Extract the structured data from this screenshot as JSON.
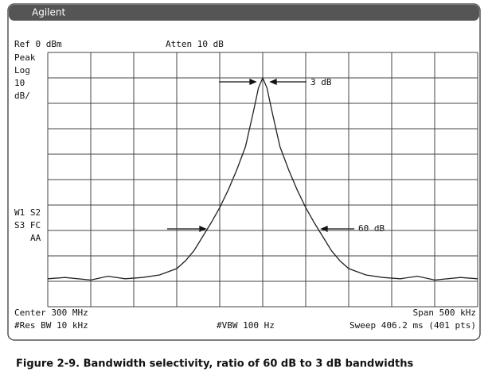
{
  "header": {
    "brand": "Agilent"
  },
  "screen": {
    "ref": "Ref 0 dBm",
    "atten": "Atten 10 dB",
    "mode": [
      "Peak",
      "Log",
      "10",
      "dB/"
    ],
    "flags": [
      "W1 S2",
      "S3 FC",
      "AA"
    ],
    "center": "Center 300 MHz",
    "span": "Span 500 kHz",
    "rbw": "#Res BW 10 kHz",
    "vbw": "#VBW 100 Hz",
    "sweep": "Sweep 406.2 ms (401 pts)"
  },
  "caption": "Figure 2-9. Bandwidth selectivity, ratio of 60 dB to 3 dB bandwidths",
  "chart_data": {
    "type": "line",
    "color": "#222222",
    "grid": true,
    "x": [
      299.75,
      299.77,
      299.8,
      299.82,
      299.84,
      299.86,
      299.88,
      299.9,
      299.91,
      299.92,
      299.93,
      299.94,
      299.95,
      299.96,
      299.97,
      299.98,
      299.99,
      299.995,
      300,
      300.005,
      300.01,
      300.02,
      300.03,
      300.04,
      300.05,
      300.06,
      300.07,
      300.08,
      300.09,
      300.1,
      300.12,
      300.14,
      300.16,
      300.18,
      300.2,
      300.23,
      300.25
    ],
    "values": [
      -89,
      -88.5,
      -89.5,
      -88,
      -89,
      -88.5,
      -87.5,
      -85,
      -82,
      -78,
      -72.5,
      -67,
      -61,
      -54,
      -46,
      -37,
      -22,
      -14,
      -10,
      -14,
      -22,
      -37,
      -46,
      -54,
      -61,
      -67,
      -72.5,
      -78,
      -82,
      -85,
      -87.5,
      -88.5,
      -89,
      -88,
      -89.5,
      -88.5,
      -89
    ],
    "xlim": [
      299.75,
      300.25
    ],
    "ylim": [
      -100,
      0
    ],
    "xticks": [
      299.75,
      299.8,
      299.85,
      299.9,
      299.95,
      300,
      300.05,
      300.1,
      300.15,
      300.2,
      300.25
    ],
    "yticks": [
      0,
      -10,
      -20,
      -30,
      -40,
      -50,
      -60,
      -70,
      -80,
      -90,
      -100
    ],
    "annotations": [
      "3 dB",
      "60 dB"
    ]
  }
}
